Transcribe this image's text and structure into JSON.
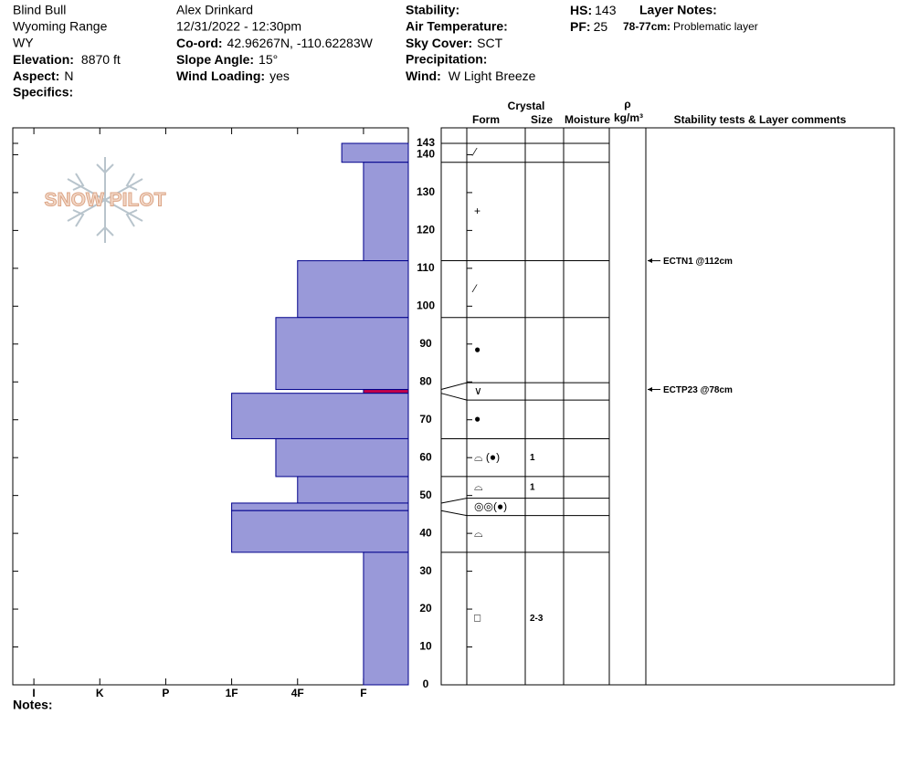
{
  "header": {
    "location": [
      "Blind Bull",
      "Wyoming Range",
      "WY"
    ],
    "elevation": {
      "label": "Elevation:",
      "value": "8870 ft"
    },
    "aspect": {
      "label": "Aspect:",
      "value": "N"
    },
    "specifics": {
      "label": "Specifics:"
    },
    "observer": "Alex Drinkard",
    "datetime": "12/31/2022 - 12:30pm",
    "coordinates": {
      "label": "Co-ord:",
      "value": "42.96267N, -110.62283W"
    },
    "slope_angle": {
      "label": "Slope Angle:",
      "value": "15°"
    },
    "wind_loading": {
      "label": "Wind Loading:",
      "value": "yes"
    },
    "stability": {
      "label": "Stability:"
    },
    "air_temperature": {
      "label": "Air Temperature:"
    },
    "sky_cover": {
      "label": "Sky Cover:",
      "value": "SCT"
    },
    "precipitation": {
      "label": "Precipitation:"
    },
    "wind": {
      "label": "Wind:",
      "value": "W Light Breeze"
    },
    "hs": {
      "label": "HS:",
      "value": 143
    },
    "pf": {
      "label": "PF:",
      "value": 25
    },
    "layer_notes": {
      "label": "Layer Notes:",
      "notes": [
        {
          "range": "78-77cm:",
          "text": "Problematic layer"
        }
      ]
    },
    "logo": "SNOW PILOT"
  },
  "chart_data": {
    "type": "snow-profile",
    "columns": {
      "crystal": "Crystal",
      "form": "Form",
      "size": "Size",
      "moisture": "Moisture",
      "density_symbol": "ρ",
      "density_unit": "kg/m³",
      "comments": "Stability tests & Layer comments"
    },
    "ylim": [
      0,
      143
    ],
    "yticks": [
      0,
      10,
      20,
      30,
      40,
      50,
      60,
      70,
      80,
      90,
      100,
      110,
      120,
      130,
      140,
      143
    ],
    "xlim": [
      6.32,
      0.32
    ],
    "xticks": [
      {
        "value": 6,
        "label": "I"
      },
      {
        "value": 5,
        "label": "K"
      },
      {
        "value": 4,
        "label": "P"
      },
      {
        "value": 3,
        "label": "1F"
      },
      {
        "value": 2,
        "label": "4F"
      },
      {
        "value": 1,
        "label": "F"
      }
    ],
    "color": "#9999d9",
    "edge_color": "#00008b",
    "layers": [
      {
        "top": 143,
        "bottom": 138,
        "hardness": 1.33,
        "form": "⁄"
      },
      {
        "top": 138,
        "bottom": 112,
        "hardness": 1,
        "form": "+"
      },
      {
        "top": 112,
        "bottom": 97,
        "hardness": 2,
        "form": "⁄"
      },
      {
        "top": 97,
        "bottom": 78,
        "hardness": 2.33,
        "form": "●"
      },
      {
        "top": 78,
        "bottom": 77,
        "hardness": 1,
        "form": "∨",
        "color": "#c0004a"
      },
      {
        "top": 77,
        "bottom": 65,
        "hardness": 3,
        "form": "●"
      },
      {
        "top": 65,
        "bottom": 55,
        "hardness": 2.33,
        "form": "⌓ (●)",
        "size": "1"
      },
      {
        "top": 55,
        "bottom": 48,
        "hardness": 2,
        "form": "⌓",
        "size": "1"
      },
      {
        "top": 48,
        "bottom": 46,
        "hardness": 3,
        "form": "◎◎(●)"
      },
      {
        "top": 46,
        "bottom": 35,
        "hardness": 3,
        "form": "⌓"
      },
      {
        "top": 35,
        "bottom": 0,
        "hardness": 1,
        "form": "□",
        "size": "2-3"
      }
    ],
    "tests": [
      {
        "label": "ECTN1 @112cm",
        "height": 112
      },
      {
        "label": "ECTP23 @78cm",
        "height": 78
      }
    ]
  },
  "notes": {
    "label": "Notes:"
  }
}
